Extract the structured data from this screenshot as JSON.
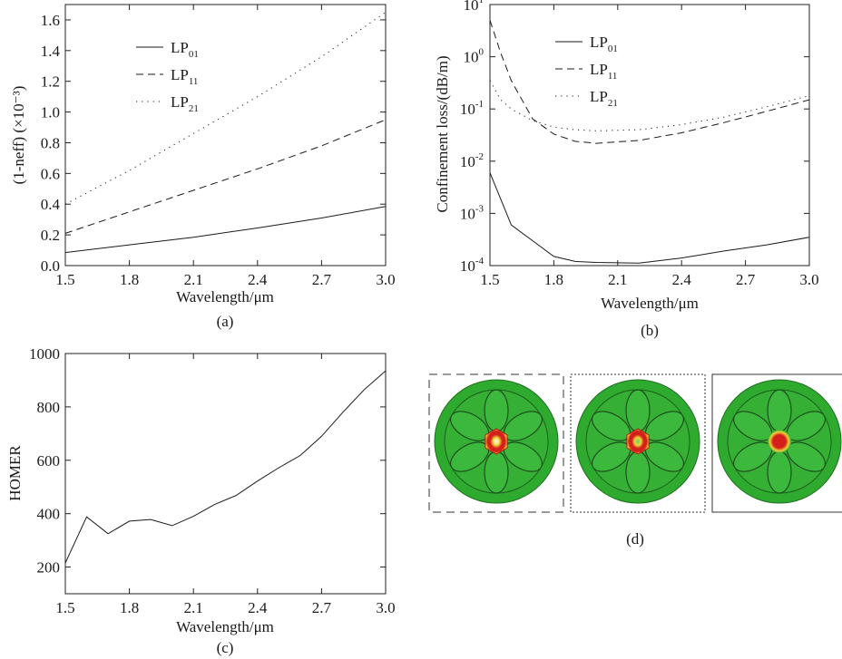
{
  "chart_data": [
    {
      "id": "a",
      "panel_label": "(a)",
      "type": "line",
      "xlabel": "Wavelength/μm",
      "ylabel": "(1-neff) (×10⁻³)",
      "xlim": [
        1.5,
        3.0
      ],
      "ylim": [
        0,
        1.7
      ],
      "xticks": [
        "1.5",
        "1.8",
        "2.1",
        "2.4",
        "2.7",
        "3.0"
      ],
      "yticks": [
        "0.0",
        "0.2",
        "0.4",
        "0.6",
        "0.8",
        "1.0",
        "1.2",
        "1.4",
        "1.6"
      ],
      "legend_placement": "top-left",
      "series": [
        {
          "name": "LP01",
          "base": "LP",
          "sub": "01",
          "dash": "solid",
          "x": [
            1.5,
            1.8,
            2.1,
            2.4,
            2.7,
            3.0
          ],
          "y": [
            0.085,
            0.135,
            0.185,
            0.245,
            0.31,
            0.385
          ]
        },
        {
          "name": "LP11",
          "base": "LP",
          "sub": "11",
          "dash": "dashed",
          "x": [
            1.5,
            1.8,
            2.1,
            2.4,
            2.7,
            3.0
          ],
          "y": [
            0.21,
            0.35,
            0.49,
            0.63,
            0.78,
            0.95
          ]
        },
        {
          "name": "LP21",
          "base": "LP",
          "sub": "21",
          "dash": "dotted",
          "x": [
            1.5,
            1.8,
            2.1,
            2.4,
            2.7,
            3.0
          ],
          "y": [
            0.4,
            0.62,
            0.86,
            1.1,
            1.36,
            1.65
          ]
        }
      ]
    },
    {
      "id": "b",
      "panel_label": "(b)",
      "type": "line",
      "scale": "log",
      "xlabel": "Wavelength/μm",
      "ylabel": "Confinement loss/(dB/m)",
      "xlim": [
        1.5,
        3.0
      ],
      "ylim": [
        0.0001,
        10
      ],
      "xticks": [
        "1.5",
        "1.8",
        "2.1",
        "2.4",
        "2.7",
        "3.0"
      ],
      "yticks": [
        {
          "base": "10",
          "exp": "1",
          "value": 10
        },
        {
          "base": "10",
          "exp": "0",
          "value": 1
        },
        {
          "base": "10",
          "exp": "-1",
          "value": 0.1
        },
        {
          "base": "10",
          "exp": "-2",
          "value": 0.01
        },
        {
          "base": "10",
          "exp": "-3",
          "value": 0.001
        },
        {
          "base": "10",
          "exp": "-4",
          "value": 0.0001
        }
      ],
      "legend_placement": "top",
      "series": [
        {
          "name": "LP01",
          "base": "LP",
          "sub": "01",
          "dash": "solid",
          "x": [
            1.5,
            1.6,
            1.7,
            1.8,
            1.9,
            2.0,
            2.2,
            2.4,
            2.6,
            2.8,
            3.0
          ],
          "y": [
            0.006,
            0.0006,
            0.0003,
            0.00015,
            0.00012,
            0.000115,
            0.000112,
            0.00014,
            0.00019,
            0.00025,
            0.00035
          ]
        },
        {
          "name": "LP11",
          "base": "LP",
          "sub": "11",
          "dash": "dashed",
          "x": [
            1.5,
            1.55,
            1.6,
            1.7,
            1.8,
            1.9,
            2.0,
            2.2,
            2.4,
            2.6,
            2.8,
            3.0
          ],
          "y": [
            5,
            1.2,
            0.35,
            0.065,
            0.033,
            0.024,
            0.022,
            0.025,
            0.035,
            0.055,
            0.09,
            0.15
          ]
        },
        {
          "name": "LP21",
          "base": "LP",
          "sub": "21",
          "dash": "dotted",
          "x": [
            1.5,
            1.55,
            1.6,
            1.7,
            1.8,
            1.9,
            2.0,
            2.2,
            2.4,
            2.6,
            2.8,
            3.0
          ],
          "y": [
            0.35,
            0.15,
            0.1,
            0.06,
            0.045,
            0.04,
            0.038,
            0.04,
            0.05,
            0.07,
            0.11,
            0.18
          ]
        }
      ]
    },
    {
      "id": "c",
      "panel_label": "(c)",
      "type": "line",
      "xlabel": "Wavelength/μm",
      "ylabel": "HOMER",
      "xlim": [
        1.5,
        3.0
      ],
      "ylim": [
        100,
        1000
      ],
      "xticks": [
        "1.5",
        "1.8",
        "2.1",
        "2.4",
        "2.7",
        "3.0"
      ],
      "yticks": [
        "200",
        "400",
        "600",
        "800",
        "1000"
      ],
      "series": [
        {
          "dash": "solid",
          "x": [
            1.5,
            1.6,
            1.7,
            1.8,
            1.9,
            2.0,
            2.1,
            2.2,
            2.3,
            2.4,
            2.5,
            2.6,
            2.7,
            2.8,
            2.9,
            3.0
          ],
          "y": [
            215,
            388,
            325,
            372,
            378,
            355,
            390,
            435,
            468,
            522,
            572,
            618,
            690,
            780,
            865,
            935
          ]
        }
      ]
    }
  ],
  "mode_images": {
    "panel_label": "(d)",
    "items": [
      {
        "frame": "dashed",
        "core": "hexagon-ring",
        "colors": [
          "#2eaa2e",
          "#f0d23a",
          "#d41f1a",
          "#ffffff"
        ]
      },
      {
        "frame": "dotted",
        "core": "hexagon-ring",
        "colors": [
          "#2eaa2e",
          "#f0d23a",
          "#d41f1a",
          "#5bd46a"
        ]
      },
      {
        "frame": "solid",
        "core": "spot",
        "colors": [
          "#2eaa2e",
          "#f0d23a",
          "#d41f1a"
        ]
      }
    ]
  }
}
